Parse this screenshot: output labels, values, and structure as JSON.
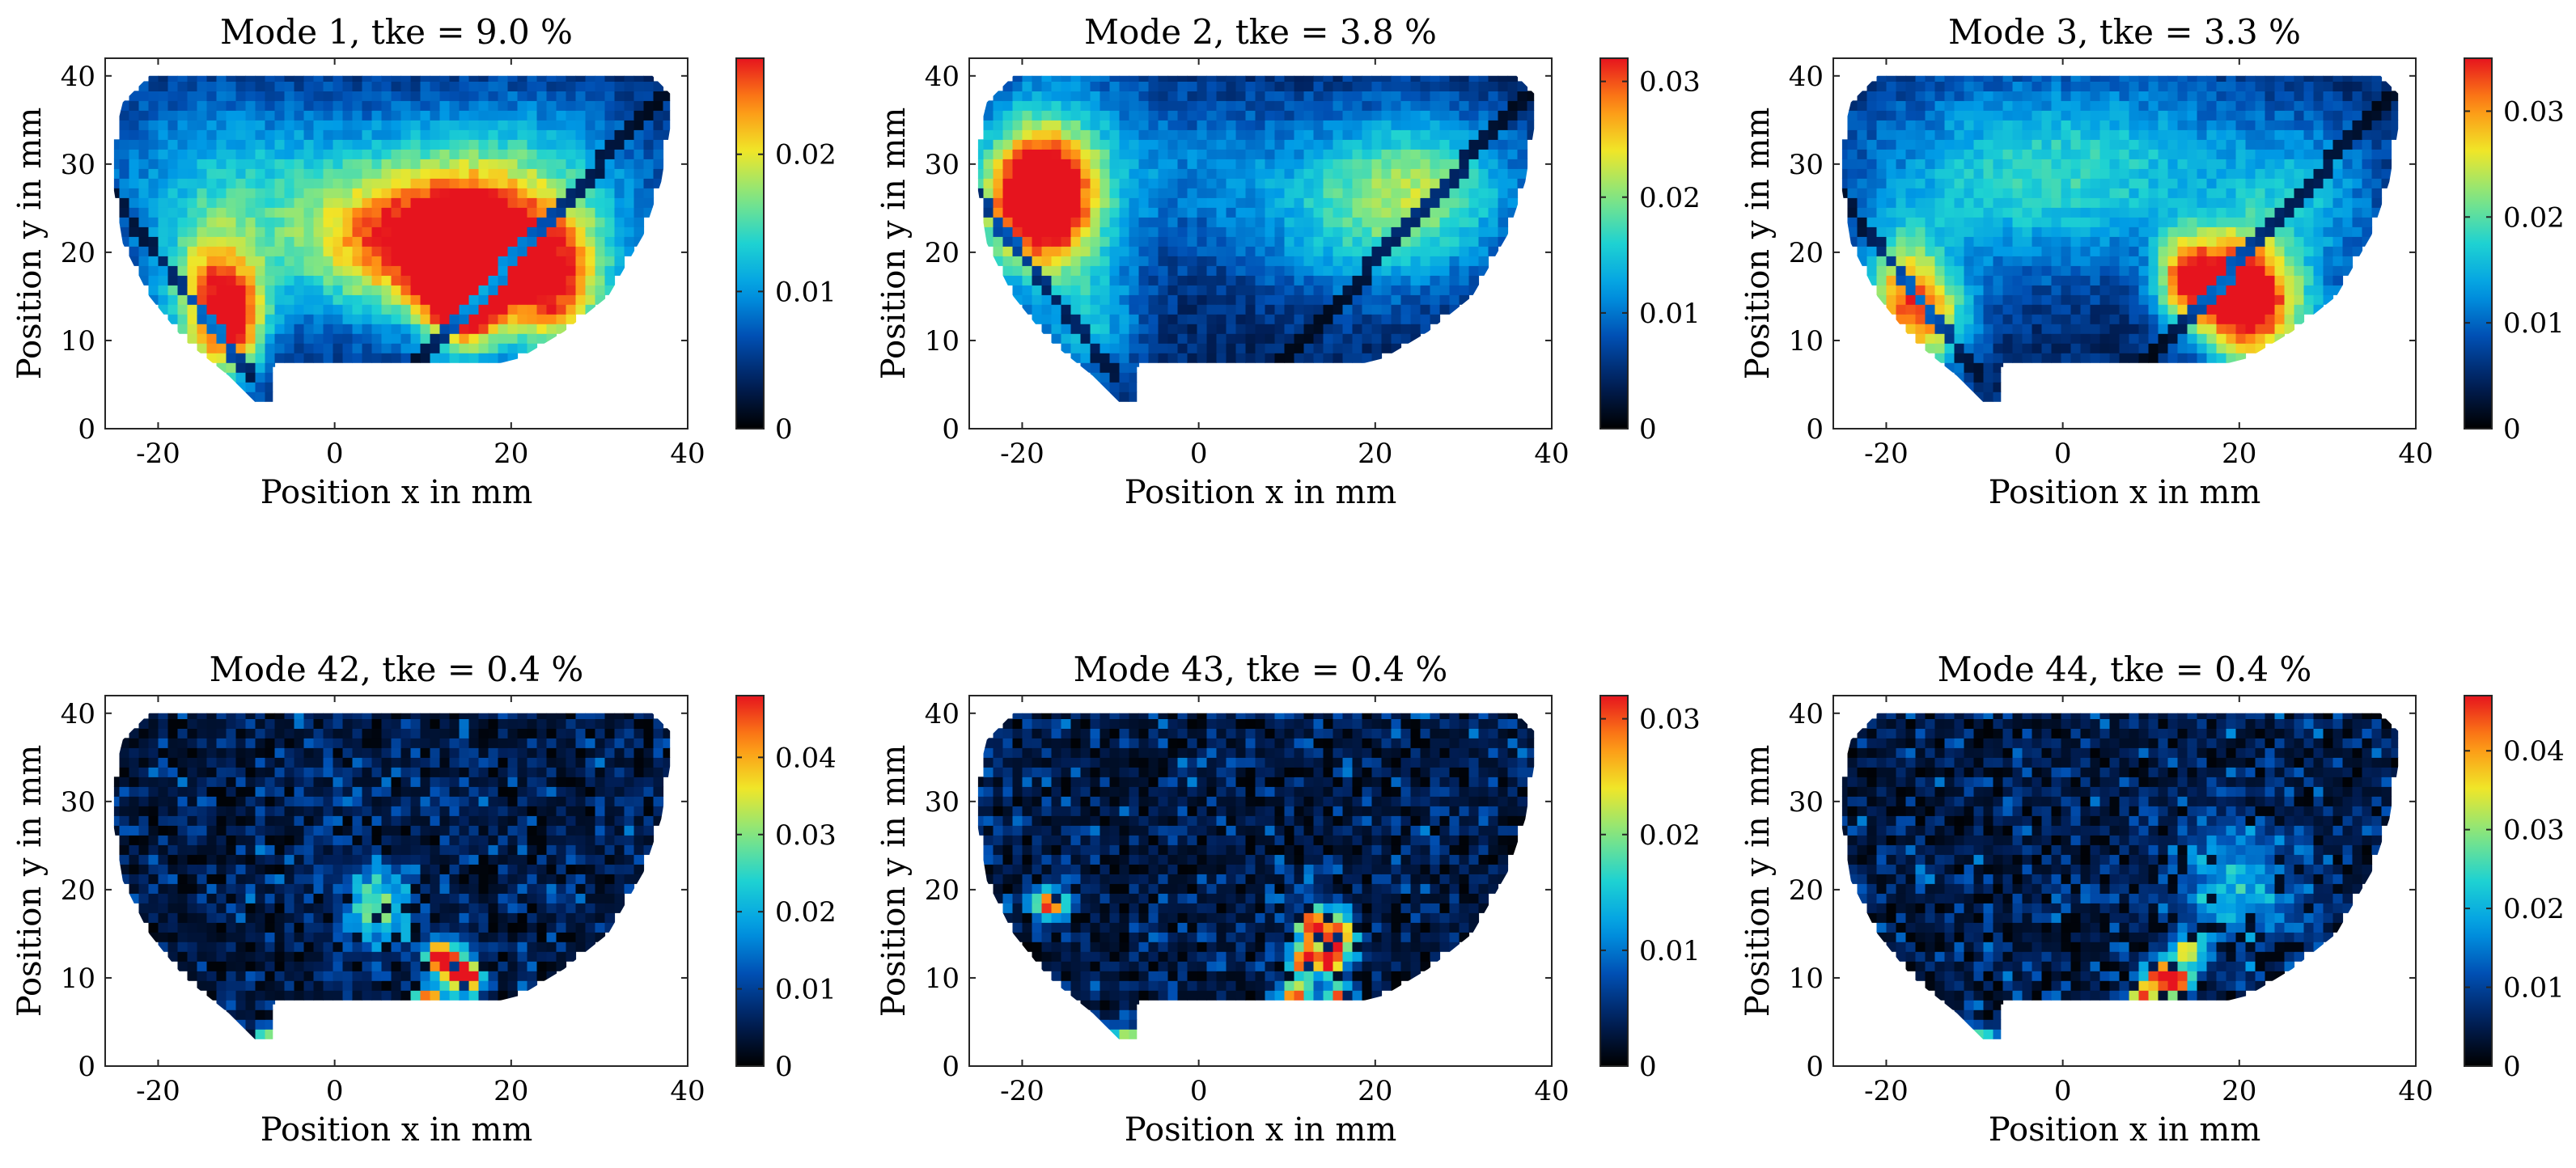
{
  "colormap": [
    "#000000",
    "#00205b",
    "#0050b4",
    "#009be6",
    "#1ed2d2",
    "#82e682",
    "#f0e628",
    "#ff8c14",
    "#e6141e"
  ],
  "chart_data": [
    {
      "type": "heatmap",
      "title": "Mode 1, tke = 9.0 %",
      "xlabel": "Position x in mm",
      "ylabel": "Position y in mm",
      "xlim": [
        -26,
        40
      ],
      "ylim": [
        0,
        42
      ],
      "xticks": [
        -20,
        0,
        20,
        40
      ],
      "yticks": [
        0,
        10,
        20,
        30,
        40
      ],
      "clim": [
        0,
        0.027
      ],
      "cticks": [
        0,
        0.01,
        0.02
      ],
      "pattern": "coherent",
      "hotspots": [
        {
          "x": 14.5,
          "y": 16,
          "sx": 3,
          "sy": 5,
          "v": 0.026
        },
        {
          "x": 12,
          "y": 21,
          "sx": 9,
          "sy": 5,
          "v": 0.014
        },
        {
          "x": 20,
          "y": 20,
          "sx": 8,
          "sy": 5,
          "v": 0.012
        },
        {
          "x": -14,
          "y": 14,
          "sx": 3.5,
          "sy": 6,
          "v": 0.017
        },
        {
          "x": -11,
          "y": 12,
          "sx": 2.5,
          "sy": 4,
          "v": 0.012
        },
        {
          "x": 25,
          "y": 14,
          "sx": 4,
          "sy": 5,
          "v": 0.014
        },
        {
          "x": 5,
          "y": 23,
          "sx": 12,
          "sy": 8,
          "v": 0.01
        },
        {
          "x": -15,
          "y": 28,
          "sx": 10,
          "sy": 8,
          "v": 0.006
        },
        {
          "x": 22,
          "y": 30,
          "sx": 10,
          "sy": 6,
          "v": 0.007
        }
      ]
    },
    {
      "type": "heatmap",
      "title": "Mode 2, tke = 3.8 %",
      "xlabel": "Position x in mm",
      "ylabel": "Position y in mm",
      "xlim": [
        -26,
        40
      ],
      "ylim": [
        0,
        42
      ],
      "xticks": [
        -20,
        0,
        20,
        40
      ],
      "yticks": [
        0,
        10,
        20,
        30,
        40
      ],
      "clim": [
        0,
        0.032
      ],
      "cticks": [
        0,
        0.01,
        0.02,
        0.03
      ],
      "pattern": "coherent",
      "hotspots": [
        {
          "x": -18,
          "y": 26,
          "sx": 4,
          "sy": 5,
          "v": 0.03
        },
        {
          "x": -17,
          "y": 28,
          "sx": 7,
          "sy": 9,
          "v": 0.012
        },
        {
          "x": 25,
          "y": 28,
          "sx": 8,
          "sy": 6,
          "v": 0.013
        },
        {
          "x": 18,
          "y": 22,
          "sx": 10,
          "sy": 6,
          "v": 0.007
        },
        {
          "x": -12,
          "y": 12,
          "sx": 4,
          "sy": 5,
          "v": 0.008
        },
        {
          "x": 2,
          "y": 30,
          "sx": 10,
          "sy": 6,
          "v": 0.005
        }
      ]
    },
    {
      "type": "heatmap",
      "title": "Mode 3, tke = 3.3 %",
      "xlabel": "Position x in mm",
      "ylabel": "Position y in mm",
      "xlim": [
        -26,
        40
      ],
      "ylim": [
        0,
        42
      ],
      "xticks": [
        -20,
        0,
        20,
        40
      ],
      "yticks": [
        0,
        10,
        20,
        30,
        40
      ],
      "clim": [
        0,
        0.035
      ],
      "cticks": [
        0,
        0.01,
        0.02,
        0.03
      ],
      "pattern": "coherent",
      "hotspots": [
        {
          "x": 20,
          "y": 15,
          "sx": 3.5,
          "sy": 5,
          "v": 0.033
        },
        {
          "x": 14,
          "y": 17,
          "sx": 2.5,
          "sy": 3.5,
          "v": 0.025
        },
        {
          "x": 25,
          "y": 13,
          "sx": 4,
          "sy": 5,
          "v": 0.012
        },
        {
          "x": -18,
          "y": 15,
          "sx": 3,
          "sy": 5,
          "v": 0.022
        },
        {
          "x": -14,
          "y": 12,
          "sx": 3,
          "sy": 4,
          "v": 0.014
        },
        {
          "x": -8,
          "y": 28,
          "sx": 12,
          "sy": 8,
          "v": 0.01
        },
        {
          "x": 10,
          "y": 30,
          "sx": 12,
          "sy": 7,
          "v": 0.008
        },
        {
          "x": 28,
          "y": 26,
          "sx": 6,
          "sy": 6,
          "v": 0.008
        }
      ]
    },
    {
      "type": "heatmap",
      "title": "Mode 42, tke = 0.4 %",
      "xlabel": "Position x in mm",
      "ylabel": "Position y in mm",
      "xlim": [
        -26,
        40
      ],
      "ylim": [
        0,
        42
      ],
      "xticks": [
        -20,
        0,
        20,
        40
      ],
      "yticks": [
        0,
        10,
        20,
        30,
        40
      ],
      "clim": [
        0,
        0.048
      ],
      "cticks": [
        0,
        0.01,
        0.02,
        0.03,
        0.04
      ],
      "pattern": "noisy",
      "hotspots": [
        {
          "x": 12,
          "y": 12.5,
          "sx": 1.2,
          "sy": 1.2,
          "v": 0.045
        },
        {
          "x": 15,
          "y": 10,
          "sx": 1.2,
          "sy": 1.2,
          "v": 0.046
        },
        {
          "x": 10.5,
          "y": 7.5,
          "sx": 1.2,
          "sy": 1.0,
          "v": 0.042
        },
        {
          "x": 13.5,
          "y": 11,
          "sx": 1.5,
          "sy": 1.5,
          "v": 0.03
        },
        {
          "x": 5,
          "y": 18,
          "sx": 3,
          "sy": 3,
          "v": 0.02
        },
        {
          "x": -8,
          "y": 3,
          "sx": 1.2,
          "sy": 1,
          "v": 0.03
        }
      ]
    },
    {
      "type": "heatmap",
      "title": "Mode 43, tke = 0.4 %",
      "xlabel": "Position x in mm",
      "ylabel": "Position y in mm",
      "xlim": [
        -26,
        40
      ],
      "ylim": [
        0,
        42
      ],
      "xticks": [
        -20,
        0,
        20,
        40
      ],
      "yticks": [
        0,
        10,
        20,
        30,
        40
      ],
      "clim": [
        0,
        0.032
      ],
      "cticks": [
        0,
        0.01,
        0.02,
        0.03
      ],
      "pattern": "noisy",
      "hotspots": [
        {
          "x": 13,
          "y": 16,
          "sx": 1.2,
          "sy": 1.5,
          "v": 0.03
        },
        {
          "x": 16,
          "y": 15,
          "sx": 1.2,
          "sy": 1.5,
          "v": 0.03
        },
        {
          "x": 12,
          "y": 12,
          "sx": 1.2,
          "sy": 1.2,
          "v": 0.028
        },
        {
          "x": 15,
          "y": 12,
          "sx": 1.2,
          "sy": 1.2,
          "v": 0.027
        },
        {
          "x": 11,
          "y": 8,
          "sx": 1.2,
          "sy": 1.2,
          "v": 0.029
        },
        {
          "x": 16,
          "y": 8,
          "sx": 1.2,
          "sy": 1.0,
          "v": 0.026
        },
        {
          "x": -17,
          "y": 18.5,
          "sx": 1.2,
          "sy": 1.2,
          "v": 0.03
        },
        {
          "x": -8.5,
          "y": 3,
          "sx": 1.2,
          "sy": 1,
          "v": 0.022
        }
      ]
    },
    {
      "type": "heatmap",
      "title": "Mode 44, tke = 0.4 %",
      "xlabel": "Position x in mm",
      "ylabel": "Position y in mm",
      "xlim": [
        -26,
        40
      ],
      "ylim": [
        0,
        42
      ],
      "xticks": [
        -20,
        0,
        20,
        40
      ],
      "yticks": [
        0,
        10,
        20,
        30,
        40
      ],
      "clim": [
        0,
        0.047
      ],
      "cticks": [
        0,
        0.01,
        0.02,
        0.03,
        0.04
      ],
      "pattern": "noisy",
      "hotspots": [
        {
          "x": 11,
          "y": 10.5,
          "sx": 1.2,
          "sy": 1.2,
          "v": 0.044
        },
        {
          "x": 13,
          "y": 9.5,
          "sx": 1.2,
          "sy": 1.0,
          "v": 0.042
        },
        {
          "x": 9,
          "y": 8,
          "sx": 1.2,
          "sy": 1.0,
          "v": 0.04
        },
        {
          "x": 14,
          "y": 13,
          "sx": 1.2,
          "sy": 1.2,
          "v": 0.03
        },
        {
          "x": 20,
          "y": 20,
          "sx": 5,
          "sy": 5,
          "v": 0.014
        },
        {
          "x": -9,
          "y": 3,
          "sx": 1.2,
          "sy": 1,
          "v": 0.025
        }
      ]
    }
  ]
}
